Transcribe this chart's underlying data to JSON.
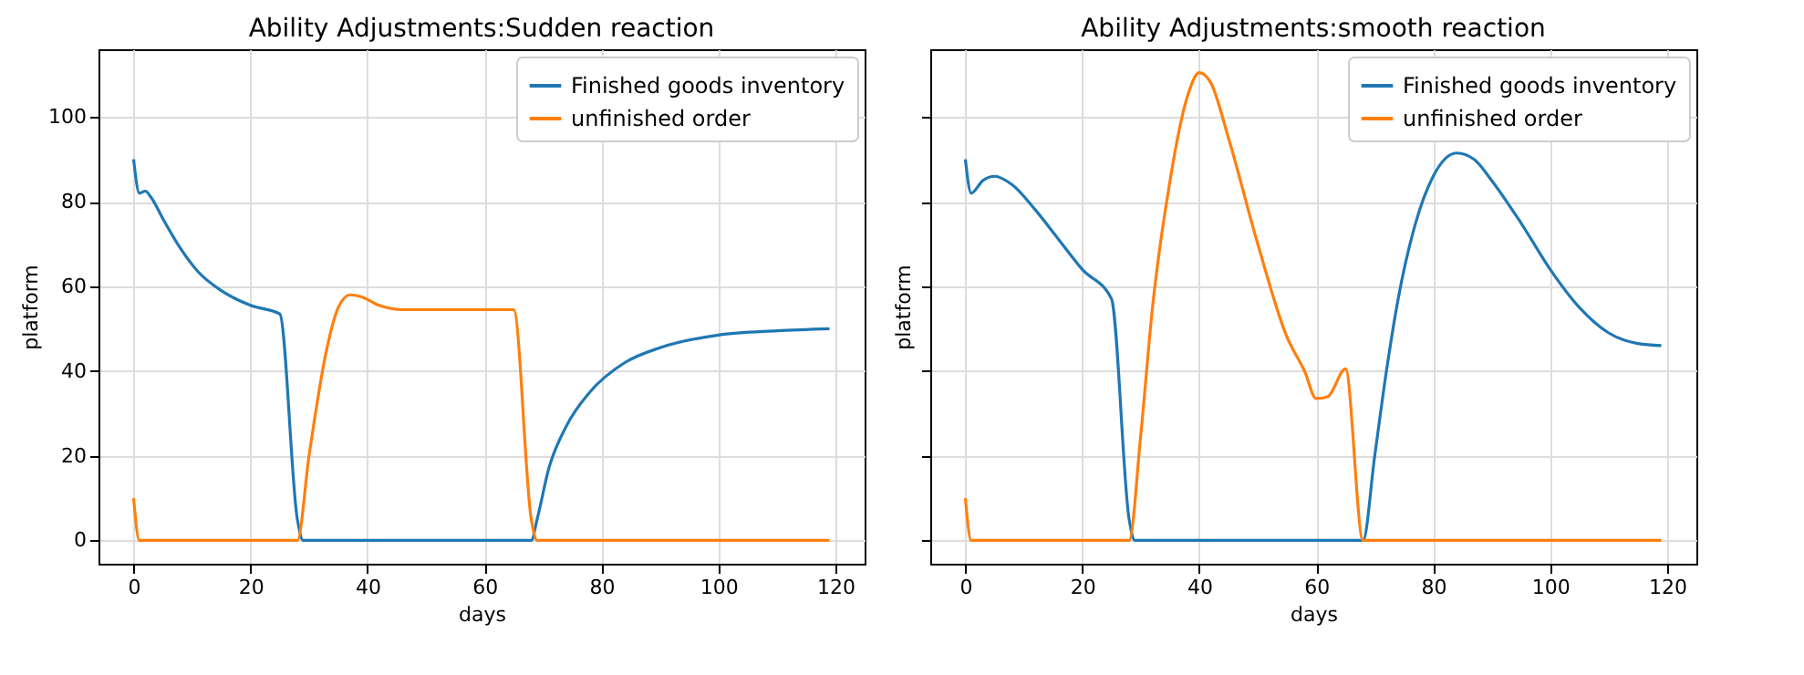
{
  "chart_data": [
    {
      "type": "line",
      "title": "Ability Adjustments:Sudden reaction",
      "xlabel": "days",
      "ylabel": "platform",
      "xlim": [
        -6,
        125
      ],
      "xticks": [
        0,
        20,
        40,
        60,
        80,
        100,
        120
      ],
      "ylim": [
        -5.5,
        116
      ],
      "yticks": [
        0,
        20,
        40,
        60,
        80,
        100
      ],
      "grid": true,
      "legend": "top right",
      "series": [
        {
          "name": "Finished goods inventory",
          "color": "#1f77b4",
          "x": [
            0,
            1,
            2,
            3,
            5,
            8,
            11,
            15,
            20,
            25,
            28,
            29,
            68,
            69,
            71,
            74,
            78,
            84,
            90,
            100,
            110,
            119
          ],
          "values": [
            90,
            82,
            82.5,
            81,
            76,
            69,
            63.5,
            59,
            55.5,
            53.5,
            5,
            0,
            0,
            5,
            17,
            27,
            35,
            42,
            45.5,
            48.5,
            49.5,
            50
          ]
        },
        {
          "name": "unfinished order",
          "color": "#ff7f0e",
          "x": [
            0,
            1,
            28,
            30,
            33,
            35,
            37,
            39,
            42,
            46,
            55,
            65,
            68,
            69,
            119
          ],
          "values": [
            10,
            0,
            0,
            20,
            45,
            55,
            58,
            57.5,
            55.5,
            54.5,
            54.5,
            54.5,
            5,
            0,
            0
          ]
        }
      ]
    },
    {
      "type": "line",
      "title": "Ability Adjustments:smooth reaction",
      "xlabel": "days",
      "ylabel": "platform",
      "xlim": [
        -6,
        125
      ],
      "xticks": [
        0,
        20,
        40,
        60,
        80,
        100,
        120
      ],
      "ylim": [
        -5.5,
        116
      ],
      "yticks": [
        0,
        20,
        40,
        60,
        80,
        100
      ],
      "tick_labels": "x",
      "grid": true,
      "legend": "top right",
      "series": [
        {
          "name": "Finished goods inventory",
          "color": "#1f77b4",
          "x": [
            0,
            1,
            3,
            5,
            8,
            12,
            16,
            20,
            25,
            28,
            29,
            68,
            70,
            72,
            74,
            77,
            80,
            84,
            87,
            90,
            95,
            100,
            105,
            110,
            115,
            119
          ],
          "values": [
            90,
            82,
            85,
            86,
            84,
            78,
            71,
            64,
            57,
            5,
            0,
            0,
            20,
            40,
            57,
            75,
            86,
            91.5,
            90,
            85,
            75,
            64,
            55,
            49,
            46.5,
            46
          ]
        },
        {
          "name": "unfinished order",
          "color": "#ff7f0e",
          "x": [
            0,
            1,
            28,
            30,
            32,
            35,
            38,
            40,
            42,
            45,
            50,
            55,
            58,
            60,
            62,
            65,
            68,
            119
          ],
          "values": [
            10,
            0,
            0,
            25,
            55,
            85,
            105,
            110.5,
            108,
            95,
            70,
            48,
            40,
            33.5,
            34,
            40.5,
            0,
            0
          ]
        }
      ]
    }
  ]
}
